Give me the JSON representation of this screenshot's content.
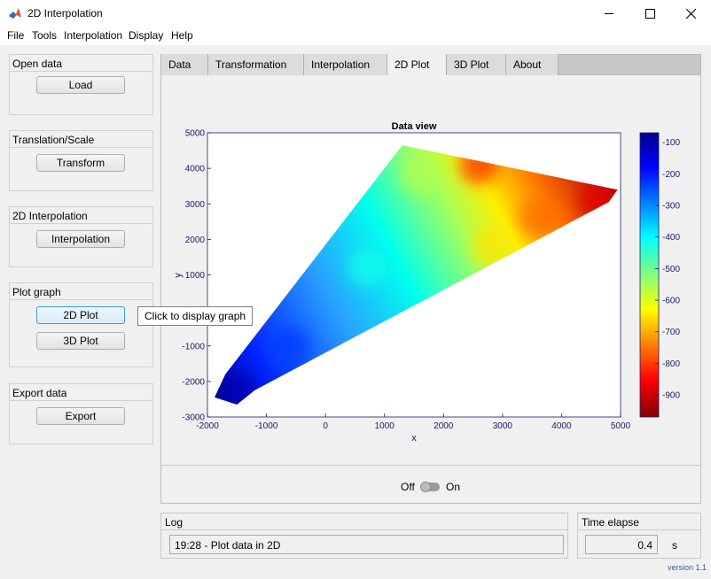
{
  "window": {
    "title": "2D Interpolation"
  },
  "menu": [
    "File",
    "Tools",
    "Interpolation",
    "Display",
    "Help"
  ],
  "panels": {
    "open": {
      "title": "Open data",
      "button": "Load"
    },
    "translate": {
      "title": "Translation/Scale",
      "button": "Transform"
    },
    "interp": {
      "title": "2D Interpolation",
      "button": "Interpolation"
    },
    "plot": {
      "title": "Plot graph",
      "button1": "2D Plot",
      "button2": "3D Plot"
    },
    "export": {
      "title": "Export data",
      "button": "Export"
    }
  },
  "tooltip": "Click to display graph",
  "tabs": [
    "Data",
    "Transformation",
    "Interpolation",
    "2D Plot",
    "3D Plot",
    "About"
  ],
  "active_tab": "2D Plot",
  "toggle": {
    "off_label": "Off",
    "on_label": "On",
    "state": "off"
  },
  "log": {
    "title": "Log",
    "message": "19:28 - Plot data in 2D"
  },
  "time": {
    "title": "Time elapse",
    "value": "0.4",
    "unit": "s"
  },
  "version": "version 1.1",
  "chart_data": {
    "type": "heatmap",
    "title": "Data view",
    "xlabel": "x",
    "ylabel": "y",
    "xlim": [
      -2000,
      5000
    ],
    "ylim": [
      -3000,
      5000
    ],
    "x_ticks": [
      -2000,
      -1000,
      0,
      1000,
      2000,
      3000,
      4000,
      5000
    ],
    "y_ticks": [
      -3000,
      -2000,
      -1000,
      0,
      1000,
      2000,
      3000,
      4000,
      5000
    ],
    "colorbar": {
      "min": -970,
      "max": -70,
      "ticks": [
        -100,
        -200,
        -300,
        -400,
        -500,
        -600,
        -700,
        -800,
        -900
      ],
      "colormap": "jet"
    },
    "domain_outline": [
      [
        -1880,
        -2450
      ],
      [
        -1500,
        -2650
      ],
      [
        -1200,
        -2250
      ],
      [
        4800,
        3050
      ],
      [
        4950,
        3400
      ],
      [
        1300,
        4650
      ],
      [
        -1700,
        -1800
      ]
    ],
    "value_regions": [
      {
        "x": -1500,
        "y": -2300,
        "value": -100
      },
      {
        "x": -600,
        "y": -1000,
        "value": -230
      },
      {
        "x": 700,
        "y": 1200,
        "value": -420
      },
      {
        "x": 1600,
        "y": 3800,
        "value": -560
      },
      {
        "x": 2800,
        "y": 1800,
        "value": -650
      },
      {
        "x": 3600,
        "y": 2600,
        "value": -760
      },
      {
        "x": 4600,
        "y": 3100,
        "value": -880
      },
      {
        "x": 2600,
        "y": 4100,
        "value": -820
      }
    ]
  }
}
